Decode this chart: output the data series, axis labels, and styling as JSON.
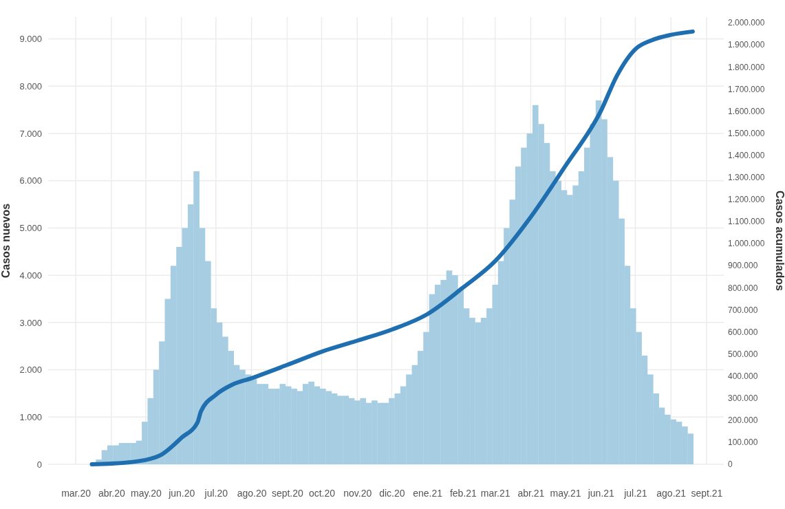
{
  "chart_data": {
    "type": "bar",
    "ylabel": "Casos nuevos",
    "y2label": "Casos acumulados",
    "grid": true,
    "xlim": [
      "2020-02-06",
      "2021-09-16"
    ],
    "xticks": [
      {
        "value": "2020-03-01",
        "label": "mar.20"
      },
      {
        "value": "2020-04-01",
        "label": "abr.20"
      },
      {
        "value": "2020-05-01",
        "label": "may.20"
      },
      {
        "value": "2020-06-01",
        "label": "jun.20"
      },
      {
        "value": "2020-07-01",
        "label": "jul.20"
      },
      {
        "value": "2020-08-01",
        "label": "ago.20"
      },
      {
        "value": "2020-09-01",
        "label": "sept.20"
      },
      {
        "value": "2020-10-01",
        "label": "oct.20"
      },
      {
        "value": "2020-11-01",
        "label": "nov.20"
      },
      {
        "value": "2020-12-01",
        "label": "dic.20"
      },
      {
        "value": "2021-01-01",
        "label": "ene.21"
      },
      {
        "value": "2021-02-01",
        "label": "feb.21"
      },
      {
        "value": "2021-03-01",
        "label": "mar.21"
      },
      {
        "value": "2021-04-01",
        "label": "abr.21"
      },
      {
        "value": "2021-05-01",
        "label": "may.21"
      },
      {
        "value": "2021-06-01",
        "label": "jun.21"
      },
      {
        "value": "2021-07-01",
        "label": "jul.21"
      },
      {
        "value": "2021-08-01",
        "label": "ago.21"
      },
      {
        "value": "2021-09-01",
        "label": "sept.21"
      }
    ],
    "ylim": [
      0,
      9460
    ],
    "yticks": [
      0,
      {
        "value": 1000,
        "label": "1.000"
      },
      {
        "value": 2000,
        "label": "2.000"
      },
      {
        "value": 3000,
        "label": "3.000"
      },
      {
        "value": 4000,
        "label": "4.000"
      },
      {
        "value": 5000,
        "label": "5.000"
      },
      {
        "value": 6000,
        "label": "6.000"
      },
      {
        "value": 7000,
        "label": "7.000"
      },
      {
        "value": 8000,
        "label": "8.000"
      },
      {
        "value": 9000,
        "label": "9.000"
      }
    ],
    "y2lim": [
      0,
      2025000
    ],
    "y2ticks": [
      0,
      {
        "value": 100000,
        "label": "100.000"
      },
      {
        "value": 200000,
        "label": "200.000"
      },
      {
        "value": 300000,
        "label": "300.000"
      },
      {
        "value": 400000,
        "label": "400.000"
      },
      {
        "value": 500000,
        "label": "500.000"
      },
      {
        "value": 600000,
        "label": "600.000"
      },
      {
        "value": 700000,
        "label": "700.000"
      },
      {
        "value": 800000,
        "label": "800.000"
      },
      {
        "value": 900000,
        "label": "900.000"
      },
      {
        "value": 1000000,
        "label": "1.000.000"
      },
      {
        "value": 1100000,
        "label": "1.100.000"
      },
      {
        "value": 1200000,
        "label": "1.200.000"
      },
      {
        "value": 1300000,
        "label": "1.300.000"
      },
      {
        "value": 1400000,
        "label": "1.400.000"
      },
      {
        "value": 1500000,
        "label": "1.500.000"
      },
      {
        "value": 1600000,
        "label": "1.600.000"
      },
      {
        "value": 1700000,
        "label": "1.700.000"
      },
      {
        "value": 1800000,
        "label": "1.800.000"
      },
      {
        "value": 1900000,
        "label": "1.900.000"
      },
      {
        "value": 2000000,
        "label": "2.000.000"
      }
    ],
    "series": [
      {
        "color": "#a6cde2",
        "x": [
          "2020-03-16",
          "2020-03-21",
          "2020-03-26",
          "2020-03-31",
          "2020-04-05",
          "2020-04-10",
          "2020-04-15",
          "2020-04-20",
          "2020-04-25",
          "2020-04-30",
          "2020-05-05",
          "2020-05-10",
          "2020-05-15",
          "2020-05-20",
          "2020-05-25",
          "2020-05-30",
          "2020-06-04",
          "2020-06-09",
          "2020-06-14",
          "2020-06-19",
          "2020-06-24",
          "2020-06-29",
          "2020-07-04",
          "2020-07-09",
          "2020-07-14",
          "2020-07-19",
          "2020-07-24",
          "2020-07-29",
          "2020-08-03",
          "2020-08-08",
          "2020-08-13",
          "2020-08-18",
          "2020-08-23",
          "2020-08-28",
          "2020-09-02",
          "2020-09-07",
          "2020-09-12",
          "2020-09-17",
          "2020-09-22",
          "2020-09-27",
          "2020-10-02",
          "2020-10-07",
          "2020-10-12",
          "2020-10-17",
          "2020-10-22",
          "2020-10-27",
          "2020-11-01",
          "2020-11-06",
          "2020-11-11",
          "2020-11-16",
          "2020-11-21",
          "2020-11-26",
          "2020-12-01",
          "2020-12-06",
          "2020-12-11",
          "2020-12-16",
          "2020-12-21",
          "2020-12-26",
          "2020-12-31",
          "2021-01-05",
          "2021-01-10",
          "2021-01-15",
          "2021-01-20",
          "2021-01-25",
          "2021-01-30",
          "2021-02-04",
          "2021-02-09",
          "2021-02-14",
          "2021-02-19",
          "2021-02-24",
          "2021-03-01",
          "2021-03-06",
          "2021-03-11",
          "2021-03-16",
          "2021-03-21",
          "2021-03-26",
          "2021-03-31",
          "2021-04-05",
          "2021-04-10",
          "2021-04-15",
          "2021-04-20",
          "2021-04-25",
          "2021-04-30",
          "2021-05-05",
          "2021-05-10",
          "2021-05-15",
          "2021-05-20",
          "2021-05-25",
          "2021-05-30",
          "2021-06-04",
          "2021-06-09",
          "2021-06-14",
          "2021-06-19",
          "2021-06-24",
          "2021-06-29",
          "2021-07-04",
          "2021-07-09",
          "2021-07-14",
          "2021-07-19",
          "2021-07-24",
          "2021-07-29",
          "2021-08-03",
          "2021-08-08",
          "2021-08-13",
          "2021-08-18"
        ],
        "values": [
          0,
          100,
          300,
          400,
          400,
          450,
          450,
          450,
          500,
          900,
          1400,
          2000,
          2600,
          3500,
          4200,
          4600,
          5000,
          5500,
          6200,
          5000,
          4300,
          3300,
          3000,
          2700,
          2400,
          2100,
          2000,
          1900,
          1800,
          1700,
          1700,
          1600,
          1600,
          1700,
          1650,
          1600,
          1550,
          1700,
          1750,
          1650,
          1600,
          1550,
          1500,
          1450,
          1450,
          1400,
          1350,
          1400,
          1300,
          1350,
          1300,
          1300,
          1400,
          1500,
          1650,
          1900,
          2100,
          2400,
          2800,
          3600,
          3800,
          3900,
          4100,
          4000,
          3700,
          3300,
          3100,
          3000,
          3100,
          3300,
          3800,
          4300,
          5000,
          5600,
          6300,
          6700,
          7000,
          7600,
          7200,
          6800,
          6200,
          6000,
          5800,
          5700,
          5900,
          6200,
          6700,
          7200,
          7700,
          7300,
          6500,
          6000,
          5200,
          4200,
          3300,
          2800,
          2300,
          1900,
          1500,
          1200,
          1050,
          950,
          900,
          800,
          650
        ]
      },
      {
        "type": "line",
        "axis": "y2",
        "color": "#1f6fb0",
        "x": [
          "2020-03-15",
          "2020-04-01",
          "2020-05-01",
          "2020-05-15",
          "2020-06-01",
          "2020-06-15",
          "2020-06-18",
          "2020-07-01",
          "2020-07-15",
          "2020-08-01",
          "2020-09-01",
          "2020-10-01",
          "2020-11-01",
          "2020-12-01",
          "2021-01-01",
          "2021-02-01",
          "2021-03-01",
          "2021-04-01",
          "2021-05-01",
          "2021-06-01",
          "2021-06-15",
          "2021-07-01",
          "2021-07-15",
          "2021-08-01",
          "2021-08-20"
        ],
        "values": [
          0,
          3000,
          20000,
          45000,
          120000,
          190000,
          240000,
          315000,
          360000,
          390000,
          450000,
          510000,
          560000,
          610000,
          680000,
          800000,
          920000,
          1120000,
          1350000,
          1600000,
          1760000,
          1880000,
          1920000,
          1945000,
          1960000
        ]
      }
    ]
  }
}
